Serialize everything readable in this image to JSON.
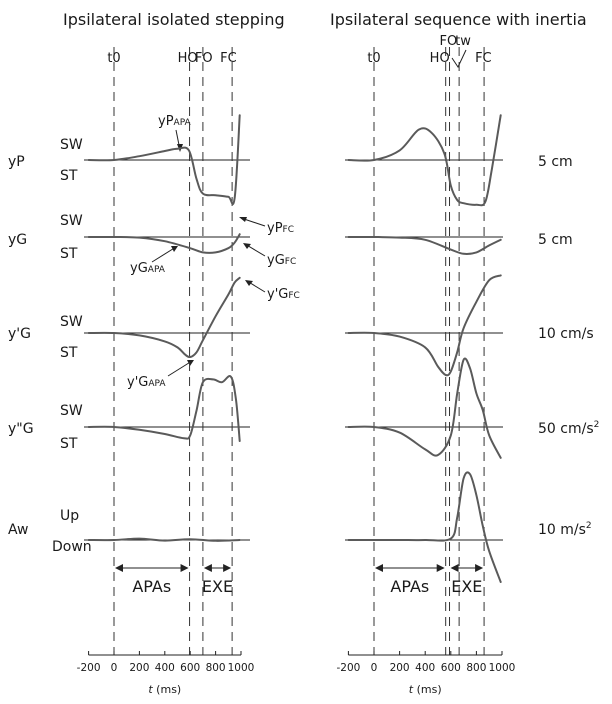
{
  "chart_data": [
    {
      "type": "line",
      "title": "Ipsilateral isolated stepping",
      "xlabel": "t (ms)",
      "xlim": [
        -200,
        1000
      ],
      "xticks": [
        -200,
        0,
        200,
        400,
        600,
        800,
        1000
      ],
      "events": [
        {
          "label": "t0",
          "t": 0
        },
        {
          "label": "HO",
          "t": 595
        },
        {
          "label": "FO",
          "t": 700
        },
        {
          "label": "FC",
          "t": 930
        }
      ],
      "phases": [
        {
          "label": "APAs",
          "from": 0,
          "to": 595
        },
        {
          "label": "EXE",
          "from": 700,
          "to": 930
        }
      ],
      "series": [
        {
          "name": "yP",
          "x": [
            -200,
            0,
            200,
            400,
            500,
            590,
            650,
            700,
            800,
            900,
            950,
            990
          ],
          "y": [
            0,
            0,
            0.12,
            0.28,
            0.35,
            0.3,
            -0.6,
            -1.05,
            -1.1,
            -1.15,
            -1.2,
            1.4
          ]
        },
        {
          "name": "yG",
          "x": [
            -200,
            0,
            200,
            400,
            600,
            700,
            800,
            900,
            950,
            990
          ],
          "y": [
            0,
            0,
            -0.02,
            -0.15,
            -0.4,
            -0.55,
            -0.55,
            -0.4,
            -0.2,
            0.1
          ]
        },
        {
          "name": "y'G",
          "x": [
            -200,
            0,
            200,
            400,
            500,
            560,
            600,
            650,
            700,
            800,
            900,
            950,
            990
          ],
          "y": [
            0,
            0,
            -0.1,
            -0.35,
            -0.6,
            -0.9,
            -1.0,
            -0.8,
            -0.3,
            0.7,
            1.6,
            2.1,
            2.3
          ]
        },
        {
          "name": "y\"G",
          "x": [
            -200,
            0,
            200,
            400,
            550,
            600,
            650,
            700,
            780,
            850,
            920,
            960,
            990
          ],
          "y": [
            0,
            0,
            -0.1,
            -0.25,
            -0.4,
            -0.3,
            0.6,
            1.6,
            1.7,
            1.6,
            1.8,
            1.0,
            -0.5
          ]
        },
        {
          "name": "Aw",
          "x": [
            -200,
            0,
            200,
            400,
            600,
            800,
            990
          ],
          "y": [
            0,
            0,
            0.05,
            -0.02,
            0.03,
            -0.03,
            0.0
          ]
        }
      ]
    },
    {
      "type": "line",
      "title": "Ipsilateral sequence with inertia",
      "xlabel": "t (ms)",
      "xlim": [
        -200,
        1000
      ],
      "xticks": [
        -200,
        0,
        200,
        400,
        600,
        800,
        1000
      ],
      "events": [
        {
          "label": "t0",
          "t": 0
        },
        {
          "label": "HO",
          "t": 560
        },
        {
          "label": "FO",
          "t": 590
        },
        {
          "label": "tw",
          "t": 665
        },
        {
          "label": "FC",
          "t": 860
        }
      ],
      "phases": [
        {
          "label": "APAs",
          "from": 0,
          "to": 560
        },
        {
          "label": "EXE",
          "from": 590,
          "to": 860
        }
      ],
      "series": [
        {
          "name": "yP",
          "x": [
            -200,
            0,
            200,
            350,
            450,
            550,
            600,
            650,
            700,
            800,
            870,
            920,
            990
          ],
          "y": [
            0,
            0,
            0.3,
            0.95,
            0.85,
            0.2,
            -0.8,
            -1.25,
            -1.35,
            -1.4,
            -1.3,
            -0.3,
            1.4
          ]
        },
        {
          "name": "yG",
          "x": [
            -200,
            0,
            200,
            400,
            600,
            700,
            800,
            900,
            990
          ],
          "y": [
            0,
            0,
            -0.02,
            -0.1,
            -0.45,
            -0.6,
            -0.55,
            -0.3,
            -0.1
          ]
        },
        {
          "name": "y'G",
          "x": [
            -200,
            0,
            200,
            400,
            500,
            560,
            600,
            650,
            700,
            800,
            900,
            990
          ],
          "y": [
            0,
            0,
            -0.15,
            -0.6,
            -1.4,
            -1.75,
            -1.6,
            -0.8,
            0.2,
            1.3,
            2.2,
            2.4
          ]
        },
        {
          "name": "y\"G",
          "x": [
            -200,
            0,
            200,
            400,
            500,
            600,
            650,
            700,
            750,
            800,
            850,
            900,
            990
          ],
          "y": [
            0,
            0,
            -0.2,
            -0.8,
            -1.0,
            -0.3,
            1.2,
            2.4,
            2.1,
            1.2,
            0.6,
            -0.3,
            -1.1
          ]
        },
        {
          "name": "Aw",
          "x": [
            -200,
            0,
            200,
            400,
            600,
            650,
            700,
            750,
            800,
            850,
            900,
            990
          ],
          "y": [
            0,
            0,
            0,
            0,
            0.05,
            0.8,
            2.2,
            2.35,
            1.6,
            0.5,
            -0.4,
            -1.5
          ]
        }
      ]
    }
  ],
  "labels": {
    "rows": [
      "yP",
      "yG",
      "y'G",
      "y\"G",
      "Aw"
    ],
    "sw": "SW",
    "st": "ST",
    "up": "Up",
    "down": "Down",
    "scales": [
      "5 cm",
      "5 cm",
      "10 cm/s",
      "50 cm/s",
      "10 m/s"
    ],
    "scale_sup": "2",
    "annotations": {
      "yP_apa": "yP",
      "yP_apa_sub": "APA",
      "yP_fc": "yP",
      "yP_fc_sub": "FC",
      "yG_apa": "yG",
      "yG_apa_sub": "APA",
      "yG_fc": "yG",
      "yG_fc_sub": "FC",
      "ypG_fc": "y'G",
      "ypG_fc_sub": "FC",
      "ypG_apa": "y'G",
      "ypG_apa_sub": "APA"
    },
    "tick_labels": [
      "-200",
      "0",
      "200",
      "400",
      "600",
      "800",
      "1000"
    ],
    "xlabel_var": "t",
    "xlabel_unit": " (ms)"
  },
  "colors": {
    "trace": "#5a5a5a",
    "ink": "#1a1a1a"
  }
}
